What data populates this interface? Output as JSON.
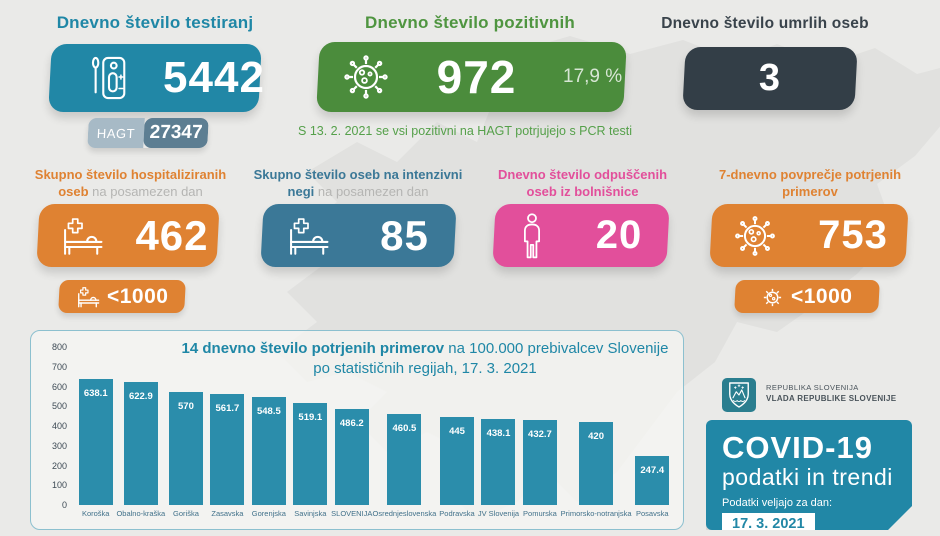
{
  "colors": {
    "teal": "#2187a6",
    "green": "#4b8c3c",
    "dark": "#333e47",
    "orange": "#df8232",
    "steel": "#3b7897",
    "pink": "#e24f9b",
    "bar": "#2b8dab",
    "background": "#eaeae8"
  },
  "top": {
    "testing": {
      "title": "Dnevno število testiranj",
      "value": "5442",
      "hagt_label": "HAGT",
      "hagt_value": "27347"
    },
    "positive": {
      "title": "Dnevno število pozitivnih",
      "value": "972",
      "percent": "17,9 %",
      "note": "S 13. 2. 2021 se vsi pozitivni na HAGT potrjujejo s PCR testi"
    },
    "deaths": {
      "title": "Dnevno število umrlih oseb",
      "value": "3"
    }
  },
  "mid": {
    "hospitalized": {
      "title_bold": "Skupno število hospitaliziranih oseb",
      "title_rest": " na posamezen dan",
      "value": "462",
      "badge": "<1000"
    },
    "icu": {
      "title_bold": "Skupno število oseb na intenzivni negi",
      "title_rest": " na posamezen dan",
      "value": "85"
    },
    "discharged": {
      "title_bold": "Dnevno število odpuščenih oseb iz bolnišnice",
      "title_rest": "",
      "value": "20"
    },
    "avg7": {
      "title_bold": "7-dnevno povprečje potrjenih primerov",
      "title_rest": "",
      "value": "753",
      "badge": "<1000"
    }
  },
  "chart_data": {
    "type": "bar",
    "title_bold": "14 dnevno število potrjenih primerov",
    "title_rest": " na 100.000 prebivalcev Slovenije po statističnih regijah, 17. 3. 2021",
    "categories": [
      "Koroška",
      "Obalno-kraška",
      "Goriška",
      "Zasavska",
      "Gorenjska",
      "Savinjska",
      "SLOVENIJA",
      "Osrednjeslovenska",
      "Podravska",
      "JV Slovenija",
      "Pomurska",
      "Primorsko-notranjska",
      "Posavska"
    ],
    "values": [
      638.1,
      622.9,
      570,
      561.7,
      548.5,
      519.1,
      486.2,
      460.5,
      445,
      438.1,
      432.7,
      420,
      247.4
    ],
    "value_labels": [
      "638.1",
      "622.9",
      "570",
      "561.7",
      "548.5",
      "519.1",
      "486.2",
      "460.5",
      "445",
      "438.1",
      "432.7",
      "420",
      "247.4"
    ],
    "ylim": [
      0,
      800
    ],
    "yticks": [
      800,
      700,
      600,
      500,
      400,
      300,
      200,
      100,
      0
    ],
    "bar_color": "#2b8dab",
    "grid": false,
    "legend": false,
    "xlabel": "",
    "ylabel": ""
  },
  "government": {
    "line1": "REPUBLIKA SLOVENIJA",
    "line2": "VLADA REPUBLIKE SLOVENIJE"
  },
  "covid_card": {
    "title": "COVID-19",
    "subtitle": "podatki in trendi",
    "date_label": "Podatki veljajo za dan:",
    "date": "17. 3. 2021"
  }
}
